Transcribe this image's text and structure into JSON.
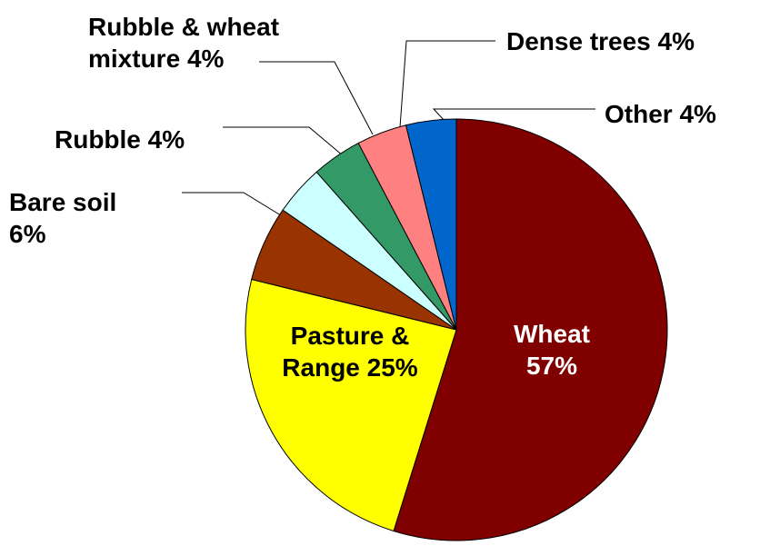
{
  "chart_data": {
    "type": "pie",
    "categories": [
      "Wheat",
      "Pasture & Range",
      "Bare soil",
      "Rubble",
      "Rubble & wheat mixture",
      "Dense trees",
      "Other"
    ],
    "values": [
      57,
      25,
      6,
      4,
      4,
      4,
      4
    ],
    "value_labels": [
      "57%",
      "25%",
      "6%",
      "4%",
      "4%",
      "4%",
      "4%"
    ],
    "colors": [
      "#800000",
      "#ffff00",
      "#993300",
      "#ccffff",
      "#339966",
      "#ff8080",
      "#0066cc"
    ]
  }
}
